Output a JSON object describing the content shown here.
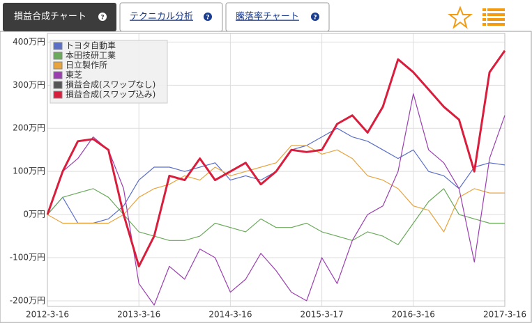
{
  "tabs": [
    "損益合成チャート",
    "テクニカル分析",
    "騰落率チャート"
  ],
  "chart_data": {
    "type": "line",
    "x": [
      0,
      2,
      4,
      6,
      8,
      10,
      12,
      14,
      16,
      18,
      20,
      22,
      24,
      26,
      28,
      30,
      32,
      34,
      36,
      38,
      40,
      42,
      44,
      46,
      48,
      50,
      52,
      54,
      56,
      58,
      60
    ],
    "xlim": [
      0,
      60
    ],
    "xticks": [
      {
        "value": 0,
        "label": "2012-3-16"
      },
      {
        "value": 12,
        "label": "2013-3-16"
      },
      {
        "value": 24,
        "label": "2014-3-16"
      },
      {
        "value": 36,
        "label": "2015-3-17"
      },
      {
        "value": 48,
        "label": "2016-3-16"
      },
      {
        "value": 60,
        "label": "2017-3-16"
      }
    ],
    "ylim": [
      -213,
      420
    ],
    "yticks": [
      {
        "value": -200,
        "label": "-200万円"
      },
      {
        "value": -100,
        "label": "-100万円"
      },
      {
        "value": 0,
        "label": "0万円"
      },
      {
        "value": 100,
        "label": "100万円"
      },
      {
        "value": 200,
        "label": "200万円"
      },
      {
        "value": 300,
        "label": "300万円"
      },
      {
        "value": 400,
        "label": "400万円"
      }
    ],
    "grid": true,
    "legend": "upper left",
    "series": [
      {
        "name": "トヨタ自動車",
        "color": "#5b6fc7",
        "values": [
          0,
          40,
          -20,
          -20,
          -10,
          20,
          80,
          110,
          110,
          100,
          110,
          120,
          80,
          90,
          80,
          100,
          150,
          160,
          180,
          200,
          180,
          170,
          150,
          130,
          150,
          100,
          90,
          60,
          110,
          120,
          115
        ]
      },
      {
        "name": "本田技研工業",
        "color": "#6aaa5a",
        "values": [
          0,
          40,
          50,
          60,
          40,
          0,
          -40,
          -50,
          -60,
          -60,
          -50,
          -20,
          -30,
          -40,
          -10,
          -30,
          -30,
          -20,
          -40,
          -50,
          -60,
          -40,
          -50,
          -70,
          -20,
          30,
          60,
          0,
          -10,
          -20,
          -20
        ]
      },
      {
        "name": "日立製作所",
        "color": "#e8a33c",
        "values": [
          0,
          -20,
          -20,
          -20,
          -20,
          0,
          40,
          60,
          70,
          90,
          80,
          110,
          90,
          100,
          110,
          120,
          160,
          160,
          140,
          150,
          130,
          90,
          80,
          60,
          20,
          10,
          -40,
          40,
          60,
          50,
          50
        ]
      },
      {
        "name": "東芝",
        "color": "#9b3fb0",
        "values": [
          0,
          100,
          130,
          180,
          150,
          60,
          -160,
          -210,
          -120,
          -150,
          -80,
          -100,
          -180,
          -150,
          -90,
          -130,
          -180,
          -200,
          -100,
          -160,
          -60,
          0,
          20,
          100,
          280,
          150,
          120,
          60,
          -110,
          130,
          230
        ]
      },
      {
        "name": "損益合成(スワップなし)",
        "color": "#555555",
        "values": [
          0,
          100,
          170,
          175,
          150,
          0,
          -120,
          -50,
          90,
          80,
          130,
          80,
          100,
          120,
          70,
          100,
          150,
          145,
          150,
          210,
          230,
          190,
          250,
          360,
          330,
          290,
          250,
          220,
          100,
          330,
          380
        ]
      },
      {
        "name": "損益合成(スワップ込み)",
        "color": "#d81e3c",
        "values": [
          0,
          100,
          170,
          175,
          150,
          0,
          -120,
          -50,
          90,
          80,
          130,
          80,
          100,
          120,
          70,
          100,
          150,
          145,
          150,
          210,
          230,
          190,
          250,
          360,
          330,
          290,
          250,
          220,
          100,
          330,
          380
        ]
      }
    ]
  }
}
